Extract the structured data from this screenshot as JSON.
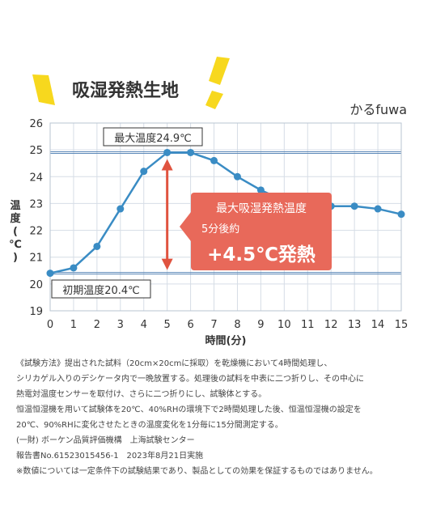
{
  "chart_data": {
    "type": "line",
    "title": "吸湿発熱生地",
    "brand": "かるfuwa",
    "xlabel": "時間(分)",
    "ylabel": "温度(℃)",
    "ylabel_chars": [
      "温",
      "度",
      "(",
      "℃",
      ")"
    ],
    "xlim": [
      0,
      15
    ],
    "ylim": [
      19,
      26
    ],
    "x_ticks": [
      0,
      1,
      2,
      3,
      4,
      5,
      6,
      7,
      8,
      9,
      10,
      11,
      12,
      13,
      14,
      15
    ],
    "y_ticks": [
      19,
      20,
      21,
      22,
      23,
      24,
      25,
      26
    ],
    "grid": true,
    "series": [
      {
        "x": [
          0,
          1,
          2,
          3,
          4,
          5,
          6,
          7,
          8,
          9,
          10,
          11,
          12,
          13,
          14,
          15
        ],
        "values": [
          20.4,
          20.6,
          21.4,
          22.8,
          24.2,
          24.9,
          24.9,
          24.6,
          24.0,
          23.5,
          23.1,
          22.9,
          22.9,
          22.9,
          22.8,
          22.6
        ],
        "color": "#3a8cc4"
      }
    ],
    "reference_lines": [
      {
        "y": 24.9,
        "label": "最大温度24.9℃"
      },
      {
        "y": 20.4,
        "label": "初期温度20.4℃"
      }
    ],
    "callout": {
      "line1": "最大吸湿発熱温度",
      "line2": "5分後約",
      "line3": "+4.5℃発熱",
      "color": "#e8695a"
    },
    "arrow": {
      "x": 5,
      "from": 20.4,
      "to": 24.9,
      "color": "#e0533f"
    }
  },
  "notes": [
    "《試験方法》提出された試料（20cm×20cmに採取）を乾燥機において4時間処理し、",
    "シリカゲル入りのデシケータ内で一晩放置する。処理後の試料を中表に二つ折りし、その中心に",
    "熱電対温度センサーを取付け、さらに二つ折りにし、試験体とする。",
    "恒温恒湿機を用いて試験体を20℃、40%RHの環境下で2時間処理した後、恒温恒湿機の設定を",
    "20℃、90%RHに変化させたときの温度変化を1分毎に15分間測定する。",
    "(一財) ボーケン品質評価機構　上海試験センター",
    "報告書No.61523015456-1　2023年8月21日実施",
    "※数値については一定条件下の試験結果であり、製品としての効果を保証するものではありません。"
  ]
}
